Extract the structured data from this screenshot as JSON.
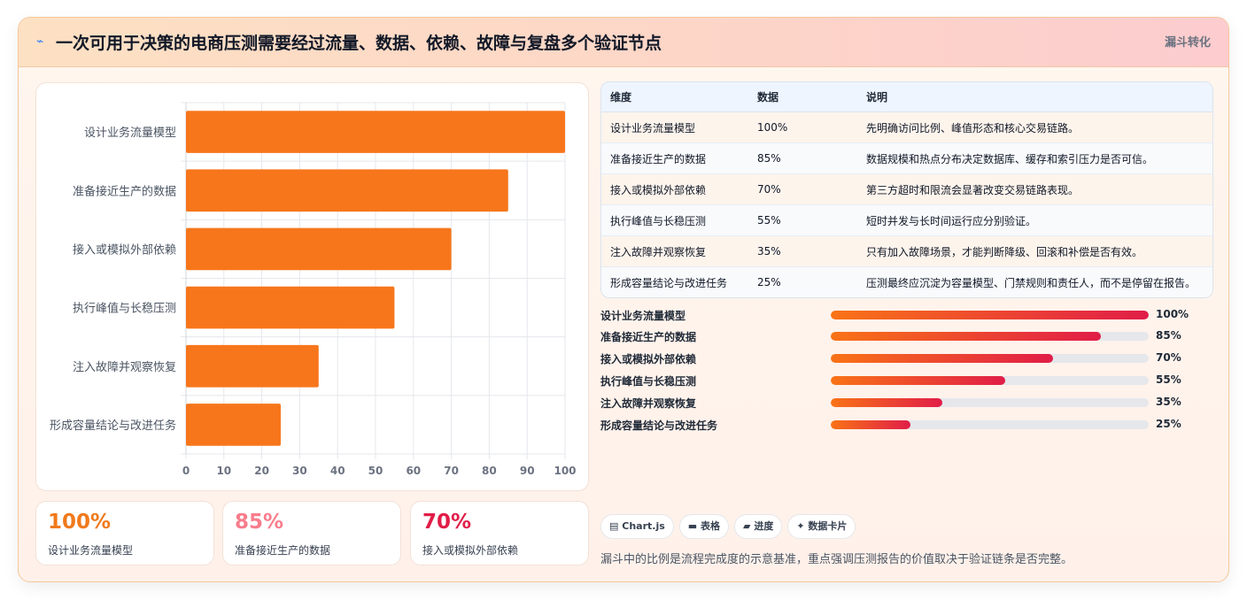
{
  "header": {
    "icon": "lightning-icon",
    "title": "一次可用于决策的电商压测需要经过流量、数据、依赖、故障与复盘多个验证节点",
    "tag": "漏斗转化"
  },
  "chart_data": {
    "type": "bar",
    "orientation": "horizontal",
    "categories": [
      "设计业务流量模型",
      "准备接近生产的数据",
      "接入或模拟外部依赖",
      "执行峰值与长稳压测",
      "注入故障并观察恢复",
      "形成容量结论与改进任务"
    ],
    "values": [
      100,
      85,
      70,
      55,
      35,
      25
    ],
    "xlim": [
      0,
      100
    ],
    "xticks": [
      "0",
      "10",
      "20",
      "30",
      "40",
      "50",
      "60",
      "70",
      "80",
      "90",
      "100"
    ],
    "grid": true,
    "color": "#f7761b"
  },
  "stats": [
    {
      "value": "100%",
      "label": "设计业务流量模型",
      "color": "#f07a1c"
    },
    {
      "value": "85%",
      "label": "准备接近生产的数据",
      "color": "#f87d8c"
    },
    {
      "value": "70%",
      "label": "接入或模拟外部依赖",
      "color": "#e11d48"
    }
  ],
  "table": {
    "headers": [
      "维度",
      "数据",
      "说明"
    ],
    "rows": [
      [
        "设计业务流量模型",
        "100%",
        "先明确访问比例、峰值形态和核心交易链路。"
      ],
      [
        "准备接近生产的数据",
        "85%",
        "数据规模和热点分布决定数据库、缓存和索引压力是否可信。"
      ],
      [
        "接入或模拟外部依赖",
        "70%",
        "第三方超时和限流会显著改变交易链路表现。"
      ],
      [
        "执行峰值与长稳压测",
        "55%",
        "短时并发与长时间运行应分别验证。"
      ],
      [
        "注入故障并观察恢复",
        "35%",
        "只有加入故障场景，才能判断降级、回滚和补偿是否有效。"
      ],
      [
        "形成容量结论与改进任务",
        "25%",
        "压测最终应沉淀为容量模型、门禁规则和责任人，而不是停留在报告。"
      ]
    ]
  },
  "progress": [
    {
      "label": "设计业务流量模型",
      "value": 1.0,
      "text": "100%"
    },
    {
      "label": "准备接近生产的数据",
      "value": 0.85,
      "text": "85%"
    },
    {
      "label": "接入或模拟外部依赖",
      "value": 0.7,
      "text": "70%"
    },
    {
      "label": "执行峰值与长稳压测",
      "value": 0.55,
      "text": "55%"
    },
    {
      "label": "注入故障并观察恢复",
      "value": 0.35,
      "text": "35%"
    },
    {
      "label": "形成容量结论与改进任务",
      "value": 0.25,
      "text": "25%"
    }
  ],
  "chips": [
    {
      "icon": "chart-icon",
      "glyph": "▤",
      "label": "Chart.js"
    },
    {
      "icon": "table-icon",
      "glyph": "▬",
      "label": "表格"
    },
    {
      "icon": "progress-icon",
      "glyph": "▰",
      "label": "进度"
    },
    {
      "icon": "sparkle-icon",
      "glyph": "✦",
      "label": "数据卡片"
    }
  ],
  "note": "漏斗中的比例是流程完成度的示意基准，重点强调压测报告的价值取决于验证链条是否完整。"
}
